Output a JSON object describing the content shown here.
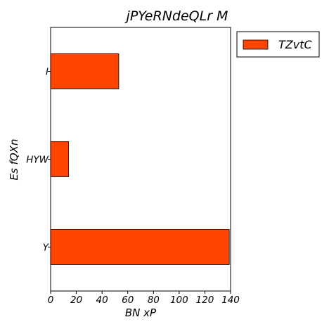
{
  "chart_data": {
    "type": "bar",
    "orientation": "horizontal",
    "title": "jPYeRNdeQLr M",
    "xlabel": "BN xP",
    "ylabel": "Es fQXn",
    "categories": [
      "I",
      "HYW",
      "Y"
    ],
    "series": [
      {
        "name": "TZvtC",
        "values": [
          53,
          14,
          139
        ],
        "color": "#ff4500"
      }
    ],
    "xlim": [
      0,
      140
    ],
    "xticks": [
      "0",
      "20",
      "40",
      "60",
      "80",
      "100",
      "120",
      "140"
    ],
    "grid": false,
    "legend": "outside-top-right"
  }
}
